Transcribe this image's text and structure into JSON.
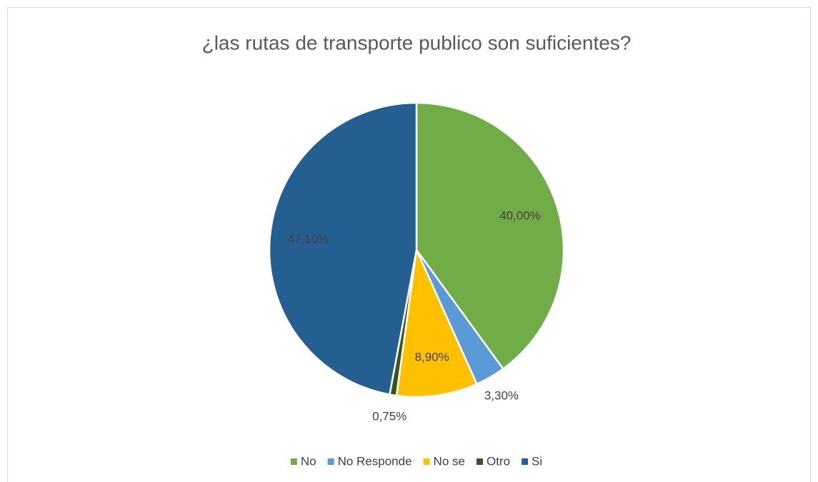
{
  "chart_data": {
    "type": "pie",
    "title": "¿las rutas de transporte publico son suficientes?",
    "categories": [
      "No",
      "No Responde",
      "No se",
      "Otro",
      "Si"
    ],
    "values": [
      40,
      3.3,
      8.9,
      0.75,
      47.1
    ],
    "value_labels": [
      "40,00%",
      "3,30%",
      "8,90%",
      "0,75%",
      "47,10%"
    ],
    "colors": [
      "#70ad47",
      "#5b9bd5",
      "#ffc000",
      "#375623",
      "#255e91"
    ],
    "legend": "bottom"
  }
}
